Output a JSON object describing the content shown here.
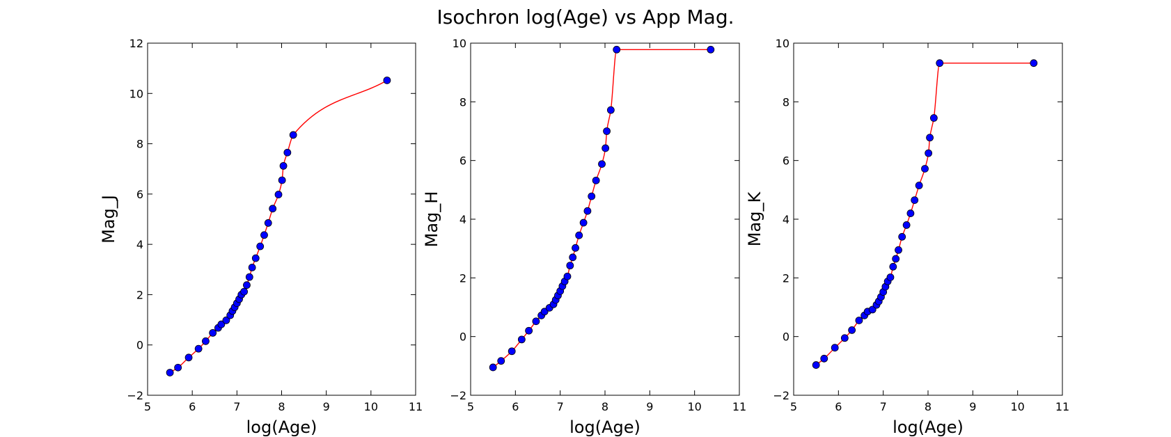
{
  "figure": {
    "title": "Isochron log(Age) vs App Mag.",
    "background": "#ffffff",
    "curve_color": "#ff0000",
    "marker_color": "#0000ff",
    "marker_edge": "#000000"
  },
  "chart_data": [
    {
      "type": "line",
      "xlabel": "log(Age)",
      "ylabel": "Mag_J",
      "xlim": [
        5,
        11
      ],
      "ylim": [
        -2,
        12
      ],
      "xticks": [
        "5",
        "6",
        "7",
        "8",
        "9",
        "10",
        "11"
      ],
      "yticks": [
        "−2",
        "0",
        "2",
        "4",
        "6",
        "8",
        "10",
        "12"
      ],
      "grid": false,
      "series": [
        {
          "marker": "circle",
          "x": [
            5.5,
            5.68,
            5.92,
            6.14,
            6.3,
            6.46,
            6.58,
            6.65,
            6.76,
            6.85,
            6.9,
            6.95,
            7.0,
            7.05,
            7.1,
            7.16,
            7.22,
            7.28,
            7.34,
            7.42,
            7.52,
            7.61,
            7.7,
            7.8,
            7.93,
            8.01,
            8.04,
            8.13,
            8.26,
            10.36
          ],
          "y": [
            -1.1,
            -0.9,
            -0.5,
            -0.15,
            0.15,
            0.48,
            0.68,
            0.82,
            0.98,
            1.18,
            1.35,
            1.5,
            1.66,
            1.82,
            2.0,
            2.12,
            2.38,
            2.7,
            3.08,
            3.45,
            3.92,
            4.37,
            4.85,
            5.42,
            5.98,
            6.55,
            7.12,
            7.65,
            8.35,
            10.52
          ]
        }
      ]
    },
    {
      "type": "line",
      "xlabel": "log(Age)",
      "ylabel": "Mag_H",
      "xlim": [
        5,
        11
      ],
      "ylim": [
        -2,
        10
      ],
      "xticks": [
        "5",
        "6",
        "7",
        "8",
        "9",
        "10",
        "11"
      ],
      "yticks": [
        "−2",
        "0",
        "2",
        "4",
        "6",
        "8",
        "10"
      ],
      "grid": false,
      "series": [
        {
          "marker": "circle",
          "x": [
            5.5,
            5.68,
            5.92,
            6.14,
            6.3,
            6.46,
            6.58,
            6.65,
            6.76,
            6.85,
            6.9,
            6.95,
            7.0,
            7.05,
            7.1,
            7.16,
            7.22,
            7.28,
            7.34,
            7.42,
            7.52,
            7.61,
            7.7,
            7.8,
            7.93,
            8.01,
            8.04,
            8.13,
            8.26,
            10.36
          ],
          "y": [
            -1.05,
            -0.83,
            -0.5,
            -0.1,
            0.2,
            0.52,
            0.72,
            0.85,
            0.98,
            1.1,
            1.25,
            1.4,
            1.55,
            1.72,
            1.88,
            2.05,
            2.42,
            2.7,
            3.02,
            3.45,
            3.88,
            4.28,
            4.78,
            5.32,
            5.88,
            6.42,
            7.0,
            7.72,
            9.78,
            9.78
          ]
        }
      ]
    },
    {
      "type": "line",
      "xlabel": "log(Age)",
      "ylabel": "Mag_K",
      "xlim": [
        5,
        11
      ],
      "ylim": [
        -2,
        10
      ],
      "xticks": [
        "5",
        "6",
        "7",
        "8",
        "9",
        "10",
        "11"
      ],
      "yticks": [
        "−2",
        "0",
        "2",
        "4",
        "6",
        "8",
        "10"
      ],
      "grid": false,
      "series": [
        {
          "marker": "circle",
          "x": [
            5.5,
            5.68,
            5.92,
            6.14,
            6.3,
            6.46,
            6.58,
            6.65,
            6.76,
            6.85,
            6.9,
            6.95,
            7.0,
            7.05,
            7.1,
            7.16,
            7.22,
            7.28,
            7.34,
            7.42,
            7.52,
            7.61,
            7.7,
            7.8,
            7.93,
            8.01,
            8.04,
            8.13,
            8.26,
            10.36
          ],
          "y": [
            -0.97,
            -0.75,
            -0.38,
            -0.05,
            0.22,
            0.55,
            0.72,
            0.85,
            0.92,
            1.08,
            1.2,
            1.35,
            1.52,
            1.7,
            1.88,
            2.02,
            2.38,
            2.65,
            2.95,
            3.4,
            3.8,
            4.2,
            4.65,
            5.15,
            5.72,
            6.25,
            6.78,
            7.45,
            9.32,
            9.32
          ]
        }
      ]
    }
  ]
}
